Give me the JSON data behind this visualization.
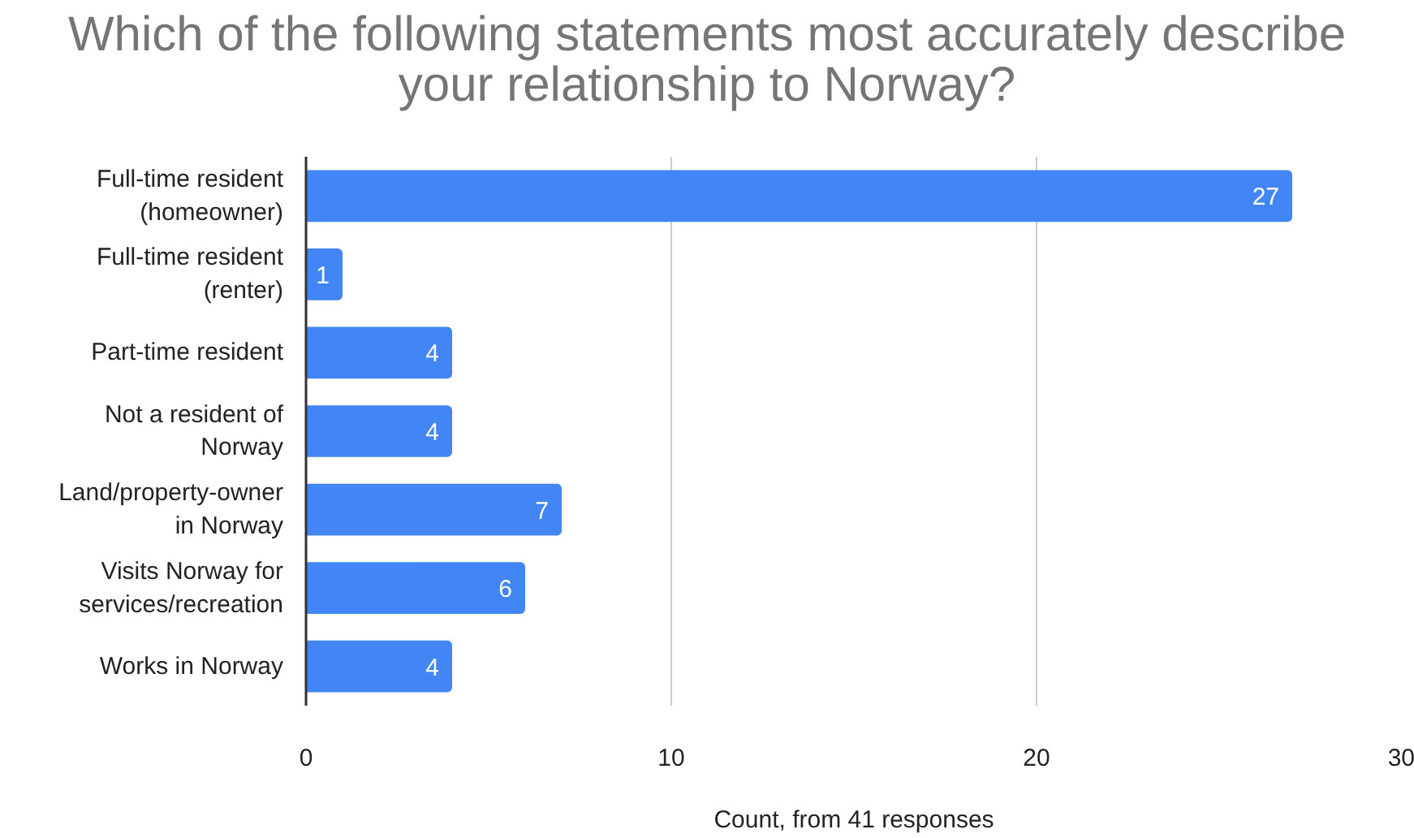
{
  "chart_data": {
    "type": "bar",
    "orientation": "horizontal",
    "title": "Which of the following statements most accurately describe your relationship to Norway?",
    "xlabel": "Count, from 41 responses",
    "categories": [
      "Full-time resident (homeowner)",
      "Full-time resident (renter)",
      "Part-time resident",
      "Not a resident of Norway",
      "Land/property-owner in Norway",
      "Visits Norway for services/recreation",
      "Works in Norway"
    ],
    "values": [
      27,
      1,
      4,
      4,
      7,
      6,
      4
    ],
    "color": "#4285f4",
    "xlim": [
      0,
      30
    ],
    "xticks": [
      0,
      10,
      20,
      30
    ],
    "grid": "x",
    "data_labels": true
  }
}
